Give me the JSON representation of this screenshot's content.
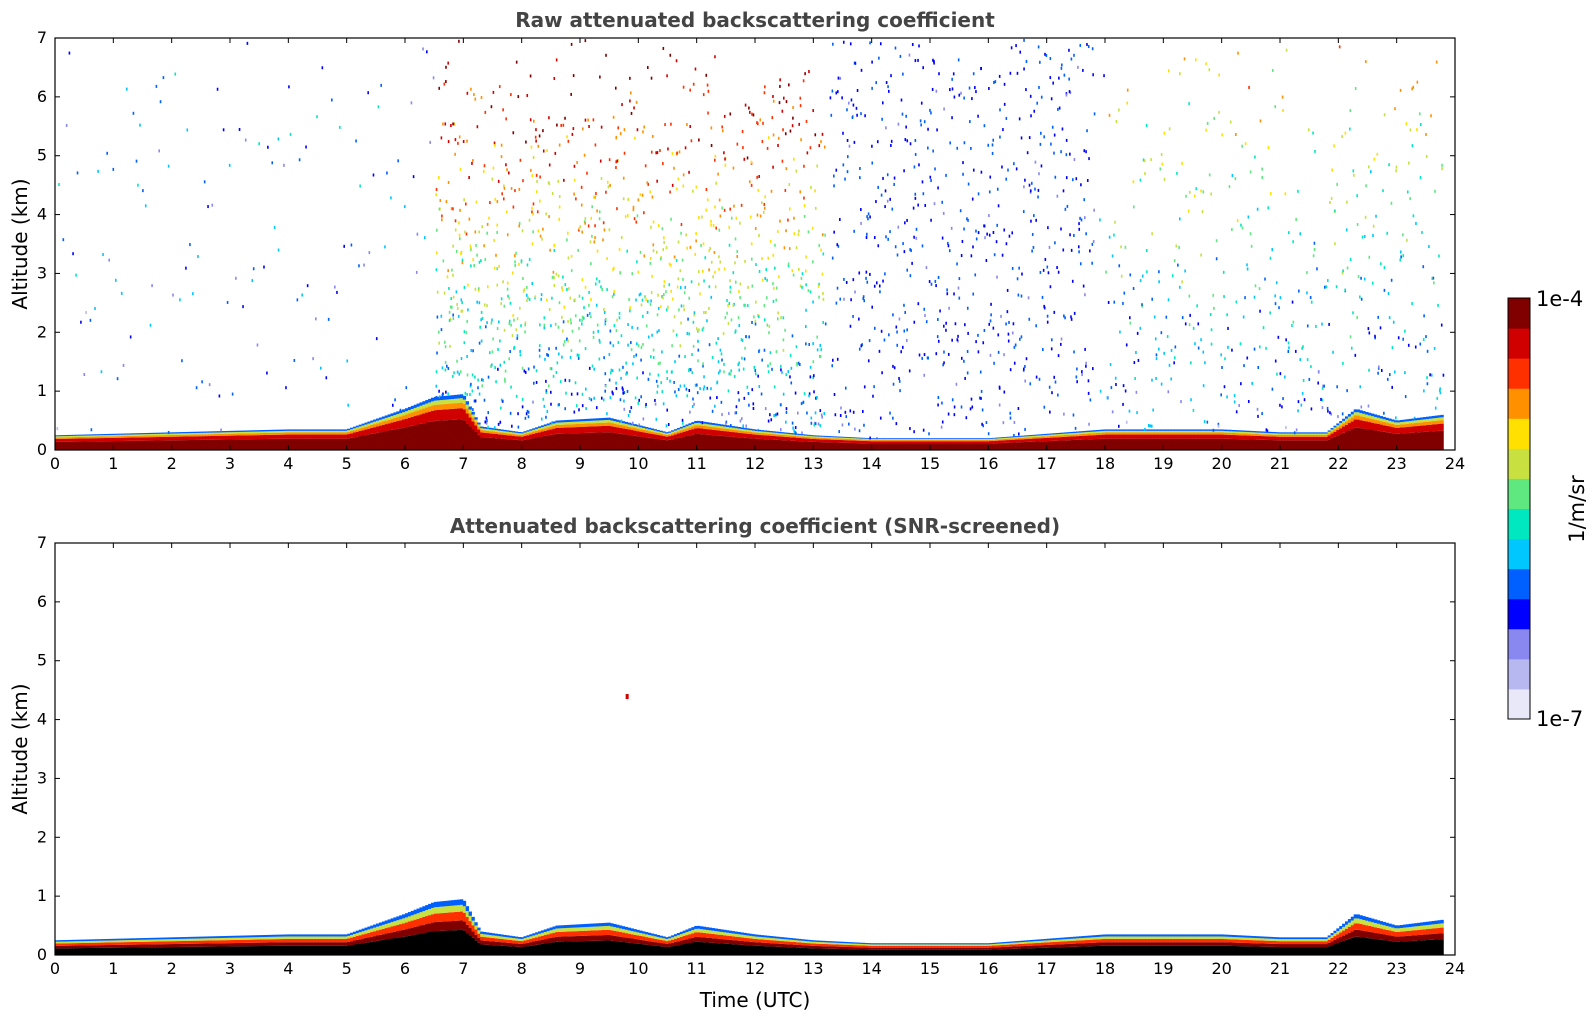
{
  "chart_data": [
    {
      "type": "heatmap",
      "title": "Raw attenuated backscattering coefficient",
      "xlabel": "",
      "ylabel": "Altitude (km)",
      "xlim": [
        0,
        24
      ],
      "ylim": [
        0,
        7
      ],
      "xticks": [
        "0",
        "1",
        "2",
        "3",
        "4",
        "5",
        "6",
        "7",
        "8",
        "9",
        "10",
        "11",
        "12",
        "13",
        "14",
        "15",
        "16",
        "17",
        "18",
        "19",
        "20",
        "21",
        "22",
        "23",
        "24"
      ],
      "yticks": [
        "0",
        "1",
        "2",
        "3",
        "4",
        "5",
        "6",
        "7"
      ],
      "colormap": "jet",
      "grid": false,
      "features": {
        "boundary_layer_top_km": [
          [
            0,
            0.25
          ],
          [
            2,
            0.3
          ],
          [
            4,
            0.35
          ],
          [
            5,
            0.35
          ],
          [
            6,
            0.7
          ],
          [
            6.5,
            0.9
          ],
          [
            7,
            0.95
          ],
          [
            7.3,
            0.4
          ],
          [
            8,
            0.3
          ],
          [
            8.6,
            0.5
          ],
          [
            9.5,
            0.55
          ],
          [
            10.5,
            0.3
          ],
          [
            11,
            0.5
          ],
          [
            12,
            0.35
          ],
          [
            13,
            0.25
          ],
          [
            14,
            0.2
          ],
          [
            16,
            0.2
          ],
          [
            18,
            0.35
          ],
          [
            20,
            0.35
          ],
          [
            21,
            0.3
          ],
          [
            21.8,
            0.3
          ],
          [
            22.3,
            0.7
          ],
          [
            23,
            0.5
          ],
          [
            23.8,
            0.6
          ]
        ],
        "high_noise_intervals_h": [
          [
            6.5,
            13.2
          ],
          [
            13.3,
            17.8
          ],
          [
            18,
            23.8
          ]
        ]
      }
    },
    {
      "type": "heatmap",
      "title": "Attenuated backscattering coefficient (SNR-screened)",
      "xlabel": "Time (UTC)",
      "ylabel": "Altitude (km)",
      "xlim": [
        0,
        24
      ],
      "ylim": [
        0,
        7
      ],
      "xticks": [
        "0",
        "1",
        "2",
        "3",
        "4",
        "5",
        "6",
        "7",
        "8",
        "9",
        "10",
        "11",
        "12",
        "13",
        "14",
        "15",
        "16",
        "17",
        "18",
        "19",
        "20",
        "21",
        "22",
        "23",
        "24"
      ],
      "yticks": [
        "0",
        "1",
        "2",
        "3",
        "4",
        "5",
        "6",
        "7"
      ],
      "colormap": "jet",
      "grid": false,
      "features": {
        "isolated_return": {
          "time_h": 9.8,
          "altitude_km": 4.4
        }
      }
    }
  ],
  "colorbar": {
    "max_label": "1e-4",
    "min_label": "1e-7",
    "unit_label": "1/m/sr",
    "colors": [
      "#e8e8f8",
      "#b8b8f0",
      "#8888f0",
      "#0000ff",
      "#0060ff",
      "#00c8ff",
      "#00e8c0",
      "#60e880",
      "#c8e040",
      "#ffe000",
      "#ff9000",
      "#ff3000",
      "#d00000",
      "#800000"
    ]
  }
}
